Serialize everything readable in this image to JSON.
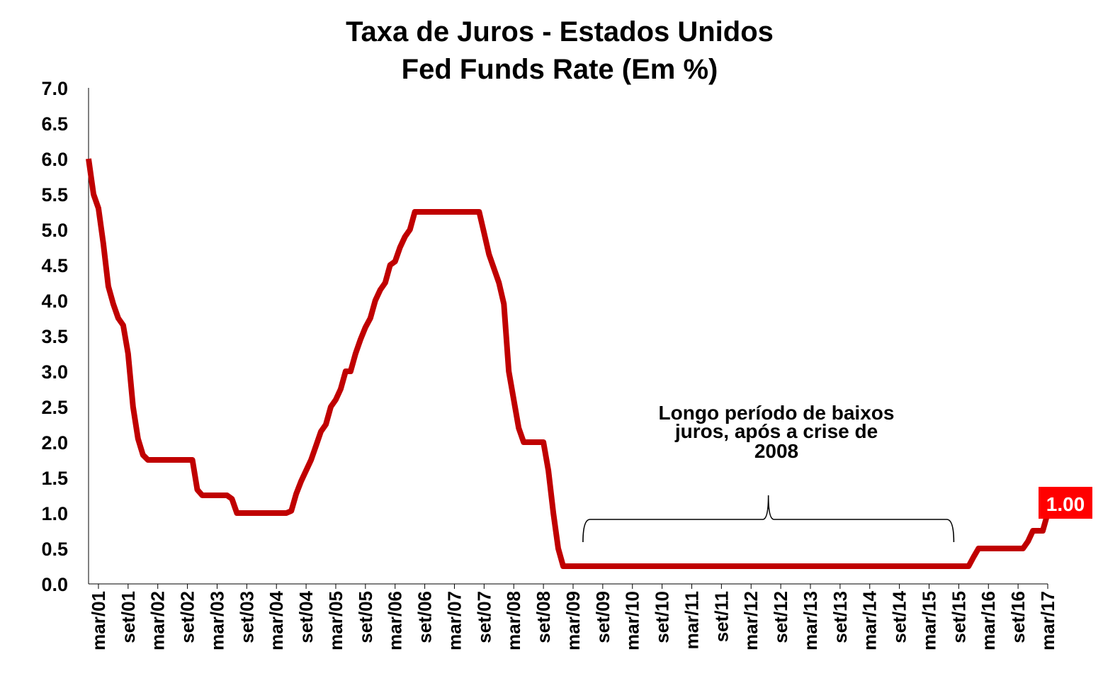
{
  "chart_data": {
    "type": "line",
    "title": [
      "Taxa de Juros - Estados Unidos",
      "Fed Funds Rate (Em %)"
    ],
    "xlabel": "",
    "ylabel": "",
    "ylim": [
      0,
      7
    ],
    "yticks": [
      "0.0",
      "0.5",
      "1.0",
      "1.5",
      "2.0",
      "2.5",
      "3.0",
      "3.5",
      "4.0",
      "4.5",
      "5.0",
      "5.5",
      "6.0",
      "6.5",
      "7.0"
    ],
    "xticks": [
      "mar/01",
      "set/01",
      "mar/02",
      "set/02",
      "mar/03",
      "set/03",
      "mar/04",
      "set/04",
      "mar/05",
      "set/05",
      "mar/06",
      "set/06",
      "mar/07",
      "set/07",
      "mar/08",
      "set/08",
      "mar/09",
      "set/09",
      "mar/10",
      "set/10",
      "mar/11",
      "set/11",
      "mar/12",
      "set/12",
      "mar/13",
      "set/13",
      "mar/14",
      "set/14",
      "mar/15",
      "set/15",
      "mar/16",
      "set/16",
      "mar/17"
    ],
    "grid": false,
    "line_color": "#c00000",
    "series": [
      {
        "points": [
          {
            "x": "2001-01",
            "y": 6.0
          },
          {
            "x": "2001-02",
            "y": 5.5
          },
          {
            "x": "2001-03",
            "y": 5.3
          },
          {
            "x": "2001-04",
            "y": 4.8
          },
          {
            "x": "2001-05",
            "y": 4.2
          },
          {
            "x": "2001-06",
            "y": 3.95
          },
          {
            "x": "2001-07",
            "y": 3.75
          },
          {
            "x": "2001-08",
            "y": 3.65
          },
          {
            "x": "2001-09",
            "y": 3.25
          },
          {
            "x": "2001-10",
            "y": 2.5
          },
          {
            "x": "2001-11",
            "y": 2.05
          },
          {
            "x": "2001-12",
            "y": 1.82
          },
          {
            "x": "2002-01",
            "y": 1.75
          },
          {
            "x": "2002-10",
            "y": 1.75
          },
          {
            "x": "2002-11",
            "y": 1.33
          },
          {
            "x": "2002-12",
            "y": 1.25
          },
          {
            "x": "2003-05",
            "y": 1.25
          },
          {
            "x": "2003-06",
            "y": 1.2
          },
          {
            "x": "2003-07",
            "y": 1.0
          },
          {
            "x": "2004-05",
            "y": 1.0
          },
          {
            "x": "2004-06",
            "y": 1.03
          },
          {
            "x": "2004-07",
            "y": 1.27
          },
          {
            "x": "2004-08",
            "y": 1.45
          },
          {
            "x": "2004-09",
            "y": 1.6
          },
          {
            "x": "2004-10",
            "y": 1.75
          },
          {
            "x": "2004-11",
            "y": 1.95
          },
          {
            "x": "2004-12",
            "y": 2.15
          },
          {
            "x": "2005-01",
            "y": 2.25
          },
          {
            "x": "2005-02",
            "y": 2.5
          },
          {
            "x": "2005-03",
            "y": 2.6
          },
          {
            "x": "2005-04",
            "y": 2.75
          },
          {
            "x": "2005-05",
            "y": 3.0
          },
          {
            "x": "2005-06",
            "y": 3.0
          },
          {
            "x": "2005-07",
            "y": 3.25
          },
          {
            "x": "2005-08",
            "y": 3.45
          },
          {
            "x": "2005-09",
            "y": 3.62
          },
          {
            "x": "2005-10",
            "y": 3.75
          },
          {
            "x": "2005-11",
            "y": 4.0
          },
          {
            "x": "2005-12",
            "y": 4.15
          },
          {
            "x": "2006-01",
            "y": 4.25
          },
          {
            "x": "2006-02",
            "y": 4.5
          },
          {
            "x": "2006-03",
            "y": 4.55
          },
          {
            "x": "2006-04",
            "y": 4.75
          },
          {
            "x": "2006-05",
            "y": 4.9
          },
          {
            "x": "2006-06",
            "y": 5.0
          },
          {
            "x": "2006-07",
            "y": 5.25
          },
          {
            "x": "2007-08",
            "y": 5.25
          },
          {
            "x": "2007-09",
            "y": 4.95
          },
          {
            "x": "2007-10",
            "y": 4.65
          },
          {
            "x": "2007-11",
            "y": 4.45
          },
          {
            "x": "2007-12",
            "y": 4.25
          },
          {
            "x": "2008-01",
            "y": 3.95
          },
          {
            "x": "2008-02",
            "y": 3.0
          },
          {
            "x": "2008-03",
            "y": 2.6
          },
          {
            "x": "2008-04",
            "y": 2.2
          },
          {
            "x": "2008-05",
            "y": 2.0
          },
          {
            "x": "2008-09",
            "y": 2.0
          },
          {
            "x": "2008-10",
            "y": 1.6
          },
          {
            "x": "2008-11",
            "y": 1.0
          },
          {
            "x": "2008-12",
            "y": 0.5
          },
          {
            "x": "2009-01",
            "y": 0.25
          },
          {
            "x": "2015-10",
            "y": 0.25
          },
          {
            "x": "2015-11",
            "y": 0.25
          },
          {
            "x": "2015-12",
            "y": 0.38
          },
          {
            "x": "2016-01",
            "y": 0.5
          },
          {
            "x": "2016-10",
            "y": 0.5
          },
          {
            "x": "2016-11",
            "y": 0.6
          },
          {
            "x": "2016-12",
            "y": 0.75
          },
          {
            "x": "2017-02",
            "y": 0.75
          },
          {
            "x": "2017-03",
            "y": 1.0
          }
        ]
      }
    ],
    "annotations": [
      {
        "text_lines": [
          "Longo período de baixos",
          "juros, após a crise de",
          "2008"
        ],
        "brace_from": "2009-05",
        "brace_to": "2015-08"
      }
    ],
    "end_label": {
      "text": "1.00",
      "bg_color": "#ff0000",
      "text_color": "#ffffff"
    }
  }
}
